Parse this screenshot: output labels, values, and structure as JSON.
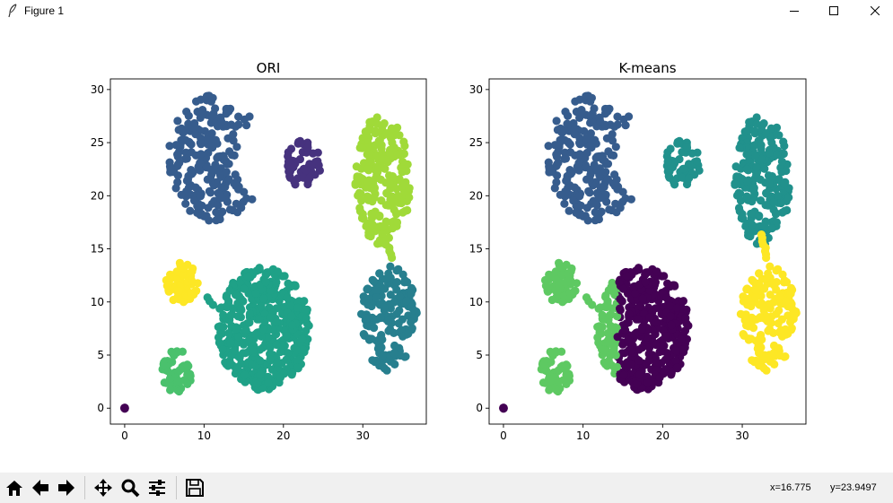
{
  "window": {
    "title": "Figure 1",
    "controls": [
      "minimize",
      "maximize",
      "close"
    ]
  },
  "toolbar": {
    "buttons": [
      "home-icon",
      "back-icon",
      "forward-icon",
      "pan-icon",
      "zoom-icon",
      "configure-subplots-icon",
      "save-icon"
    ],
    "x_readout": "x=16.775",
    "y_readout": "y=23.9497"
  },
  "colors": {
    "purple_dark": "#440154",
    "indigo": "#46327e",
    "blue": "#365c8d",
    "teal_blue": "#277f8e",
    "teal": "#1fa187",
    "teal_green": "#21918c",
    "green": "#4ac16d",
    "light_green": "#5ec962",
    "lime": "#a0da39",
    "yellow": "#fde725"
  },
  "chart_data": [
    {
      "type": "scatter",
      "title": "ORI",
      "xlabel": "",
      "ylabel": "",
      "xlim": [
        -1.8,
        38.0
      ],
      "ylim": [
        -1.5,
        31.0
      ],
      "xticks": [
        "0",
        "10",
        "20",
        "30"
      ],
      "yticks": [
        "0",
        "5",
        "10",
        "15",
        "20",
        "25",
        "30"
      ],
      "clusters": [
        {
          "shape": "crescent",
          "center": [
            11.5,
            23.5
          ],
          "radius": 6.0,
          "color": "#365c8d",
          "n": 220
        },
        {
          "shape": "disk",
          "center": [
            22.5,
            23.0
          ],
          "radius": 2.2,
          "color": "#46327e",
          "n": 55
        },
        {
          "shape": "ellipse",
          "center": [
            32.5,
            21.5
          ],
          "radius_x": 3.5,
          "radius_y": 6.2,
          "color": "#a0da39",
          "n": 210
        },
        {
          "shape": "bridge",
          "from": [
            32.5,
            16.5
          ],
          "to": [
            33.7,
            14.0
          ],
          "color": "#a0da39",
          "n": 8
        },
        {
          "shape": "ellipse",
          "center": [
            33.3,
            8.5
          ],
          "radius_x": 3.5,
          "radius_y": 5.0,
          "color": "#277f8e",
          "n": 160
        },
        {
          "shape": "disk",
          "center": [
            7.2,
            11.8
          ],
          "radius": 2.0,
          "color": "#fde725",
          "n": 60
        },
        {
          "shape": "disk",
          "center": [
            6.5,
            3.5
          ],
          "radius": 2.0,
          "color": "#4ac16d",
          "n": 55
        },
        {
          "shape": "disk",
          "center": [
            17.5,
            7.5
          ],
          "radius": 5.8,
          "color": "#1fa187",
          "n": 460
        },
        {
          "shape": "bridge",
          "from": [
            10.2,
            10.6
          ],
          "to": [
            12.0,
            9.2
          ],
          "color": "#1fa187",
          "n": 4
        },
        {
          "shape": "point",
          "center": [
            0,
            0
          ],
          "color": "#440154",
          "n": 4
        }
      ]
    },
    {
      "type": "scatter",
      "title": "K-means",
      "xlabel": "",
      "ylabel": "",
      "xlim": [
        -1.8,
        38.0
      ],
      "ylim": [
        -1.5,
        31.0
      ],
      "xticks": [
        "0",
        "10",
        "20",
        "30"
      ],
      "yticks": [
        "0",
        "5",
        "10",
        "15",
        "20",
        "25",
        "30"
      ],
      "clusters": [
        {
          "shape": "crescent",
          "center": [
            11.5,
            23.5
          ],
          "radius": 6.0,
          "color": "#365c8d",
          "n": 220
        },
        {
          "shape": "disk",
          "center": [
            22.5,
            23.0
          ],
          "radius": 2.2,
          "color": "#21918c",
          "n": 55
        },
        {
          "shape": "ellipse",
          "center": [
            32.5,
            21.5
          ],
          "radius_x": 3.5,
          "radius_y": 6.2,
          "color": "#21918c",
          "n": 210
        },
        {
          "shape": "bridge",
          "from": [
            32.5,
            16.5
          ],
          "to": [
            33.0,
            14.0
          ],
          "color": "#fde725",
          "n": 8
        },
        {
          "shape": "ellipse",
          "center": [
            33.3,
            8.5
          ],
          "radius_x": 3.5,
          "radius_y": 5.0,
          "color": "#fde725",
          "n": 160
        },
        {
          "shape": "disk",
          "center": [
            7.2,
            11.8
          ],
          "radius": 2.0,
          "color": "#5ec962",
          "n": 60
        },
        {
          "shape": "disk",
          "center": [
            6.5,
            3.5
          ],
          "radius": 2.0,
          "color": "#5ec962",
          "n": 55
        },
        {
          "shape": "disk_split",
          "center": [
            17.5,
            7.5
          ],
          "radius": 5.8,
          "split_x": 14.3,
          "left_color": "#5ec962",
          "right_color": "#440154",
          "n": 460
        },
        {
          "shape": "bridge",
          "from": [
            10.2,
            10.6
          ],
          "to": [
            12.0,
            9.2
          ],
          "color": "#5ec962",
          "n": 4
        },
        {
          "shape": "point",
          "center": [
            0,
            0
          ],
          "color": "#440154",
          "n": 4
        }
      ]
    }
  ]
}
